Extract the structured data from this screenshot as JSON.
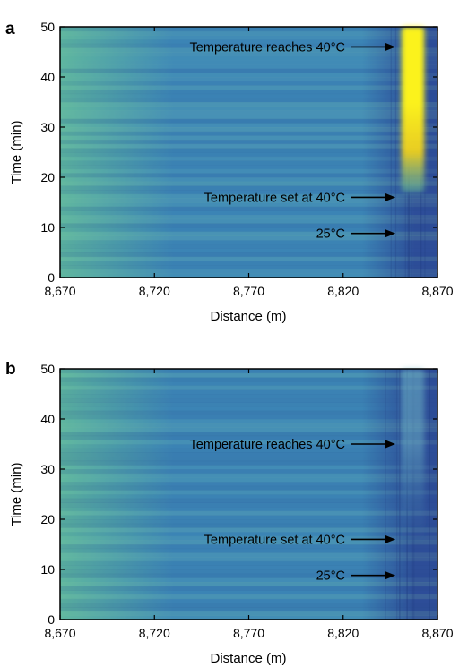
{
  "chart_data": [
    {
      "panel_label": "a",
      "type": "heatmap",
      "xlabel": "Distance (m)",
      "ylabel": "Time (min)",
      "xlim": [
        8670,
        8870
      ],
      "ylim": [
        0,
        50
      ],
      "x_ticks": [
        8670,
        8720,
        8770,
        8820,
        8870
      ],
      "x_tick_labels": [
        "8,670",
        "8,720",
        "8,770",
        "8,820",
        "8,870"
      ],
      "y_ticks": [
        0,
        10,
        20,
        30,
        40,
        50
      ],
      "y_tick_labels": [
        "0",
        "10",
        "20",
        "30",
        "40",
        "50"
      ],
      "colors": {
        "low": "#2e4f9a",
        "mid": "#3d88b8",
        "warm": "#5cb5a0",
        "hot": "#f1d21a",
        "peak": "#fbf21a"
      },
      "hotspot": {
        "x_range_m": [
          8851,
          8863
        ],
        "onset_time_min": 17,
        "peak_time_min": 35,
        "intensity": 1.0
      },
      "annotations": [
        {
          "text": "Temperature reaches 40°C",
          "time_min": 46
        },
        {
          "text": "Temperature set at 40°C",
          "time_min": 16
        },
        {
          "text": "25°C",
          "time_min": 8.8
        }
      ]
    },
    {
      "panel_label": "b",
      "type": "heatmap",
      "xlabel": "Distance (m)",
      "ylabel": "Time (min)",
      "xlim": [
        8670,
        8870
      ],
      "ylim": [
        0,
        50
      ],
      "x_ticks": [
        8670,
        8720,
        8770,
        8820,
        8870
      ],
      "x_tick_labels": [
        "8,670",
        "8,720",
        "8,770",
        "8,820",
        "8,870"
      ],
      "y_ticks": [
        0,
        10,
        20,
        30,
        40,
        50
      ],
      "y_tick_labels": [
        "0",
        "10",
        "20",
        "30",
        "40",
        "50"
      ],
      "colors": {
        "low": "#2e4f9a",
        "mid": "#3d88b8",
        "warm": "#5cb5a0",
        "hot": "#f1d21a",
        "peak": "#fbf21a"
      },
      "hotspot": {
        "x_range_m": [
          8851,
          8863
        ],
        "onset_time_min": 15,
        "peak_time_min": 35,
        "intensity": 0.14
      },
      "annotations": [
        {
          "text": "Temperature reaches 40°C",
          "time_min": 35
        },
        {
          "text": "Temperature set at 40°C",
          "time_min": 16
        },
        {
          "text": "25°C",
          "time_min": 8.8
        }
      ]
    }
  ]
}
